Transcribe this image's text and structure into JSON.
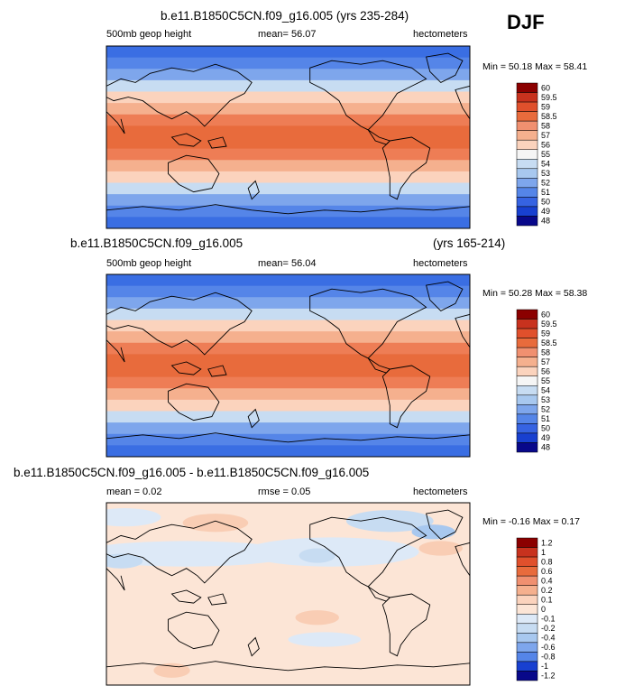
{
  "season": "DJF",
  "panels": [
    {
      "title": "b.e11.B1850C5CN.f09_g16.005 (yrs 235-284)",
      "title_right": "",
      "left": "500mb geop height",
      "center": "mean=  56.07",
      "right": "hectometers",
      "minmax": "Min =  50.18 Max =  58.41"
    },
    {
      "title": "b.e11.B1850C5CN.f09_g16.005",
      "title_right": "(yrs 165-214)",
      "left": "500mb geop height",
      "center": "mean=  56.04",
      "right": "hectometers",
      "minmax": "Min =  50.28 Max =  58.38"
    },
    {
      "title": "b.e11.B1850C5CN.f09_g16.005 - b.e11.B1850C5CN.f09_g16.005",
      "title_right": "",
      "left": "mean =  0.02",
      "center": "rmse =  0.05",
      "right": "hectometers",
      "minmax": "Min =  -0.16 Max =  0.17"
    }
  ],
  "chart_data": [
    {
      "type": "heatmap",
      "variable": "500mb geop height",
      "units": "hectometers",
      "mean": 56.07,
      "min": 50.18,
      "max": 58.41,
      "colorbar_levels": [
        "60",
        "59.5",
        "59",
        "58.5",
        "58",
        "57",
        "56",
        "55",
        "54",
        "53",
        "52",
        "51",
        "50",
        "49",
        "48"
      ],
      "colorbar_colors": [
        "#8b0000",
        "#c8321e",
        "#e0502c",
        "#e86b3c",
        "#f09070",
        "#f5b08e",
        "#fbd3bd",
        "#f5f5f5",
        "#c7dcf2",
        "#a8c8ef",
        "#7ea6ec",
        "#5585e8",
        "#3663e2",
        "#1840d0",
        "#08088a"
      ],
      "field_bands": [
        "#3a6ee3",
        "#5585e8",
        "#7ea6ec",
        "#c7dcf2",
        "#fbd3bd",
        "#f5b08e",
        "#ee7d55",
        "#e86b3c",
        "#e86b3c",
        "#ee7d55",
        "#f5b08e",
        "#fbd3bd",
        "#c7dcf2",
        "#7ea6ec",
        "#5585e8",
        "#3a6ee3"
      ]
    },
    {
      "type": "heatmap",
      "variable": "500mb geop height",
      "units": "hectometers",
      "mean": 56.04,
      "min": 50.28,
      "max": 58.38,
      "colorbar_levels": [
        "60",
        "59.5",
        "59",
        "58.5",
        "58",
        "57",
        "56",
        "55",
        "54",
        "53",
        "52",
        "51",
        "50",
        "49",
        "48"
      ],
      "colorbar_colors": [
        "#8b0000",
        "#c8321e",
        "#e0502c",
        "#e86b3c",
        "#f09070",
        "#f5b08e",
        "#fbd3bd",
        "#f5f5f5",
        "#c7dcf2",
        "#a8c8ef",
        "#7ea6ec",
        "#5585e8",
        "#3663e2",
        "#1840d0",
        "#08088a"
      ],
      "field_bands": [
        "#3a6ee3",
        "#5585e8",
        "#7ea6ec",
        "#c7dcf2",
        "#fbd3bd",
        "#f5b08e",
        "#ee7d55",
        "#e86b3c",
        "#e86b3c",
        "#ee7d55",
        "#f5b08e",
        "#fbd3bd",
        "#c7dcf2",
        "#7ea6ec",
        "#5585e8",
        "#3a6ee3"
      ]
    },
    {
      "type": "heatmap",
      "variable": "difference",
      "units": "hectometers",
      "mean": 0.02,
      "rmse": 0.05,
      "min": -0.16,
      "max": 0.17,
      "colorbar_levels": [
        "1.2",
        "1",
        "0.8",
        "0.6",
        "0.4",
        "0.2",
        "0.1",
        "0",
        "-0.1",
        "-0.2",
        "-0.4",
        "-0.6",
        "-0.8",
        "-1",
        "-1.2"
      ],
      "colorbar_colors": [
        "#8b0000",
        "#c8321e",
        "#e0502c",
        "#e86b3c",
        "#f09070",
        "#f5b08e",
        "#fbd3bd",
        "#fce5d6",
        "#dde9f7",
        "#c7dcf2",
        "#a8c8ef",
        "#7ea6ec",
        "#5585e8",
        "#1840d0",
        "#08088a"
      ],
      "field_bands": [
        "#fce5d6"
      ]
    }
  ]
}
